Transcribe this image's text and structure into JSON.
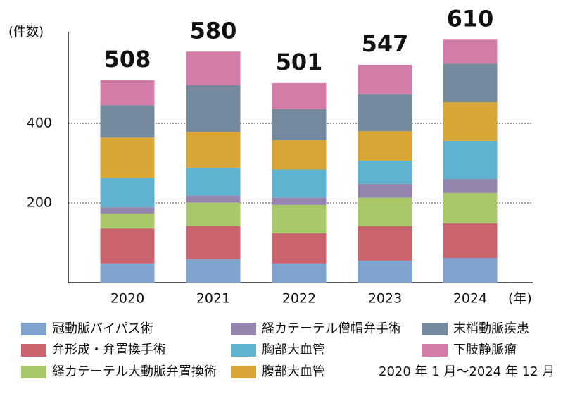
{
  "chart_data": {
    "type": "stacked_bar",
    "y_label": "(件数)",
    "x_unit": "(年)",
    "categories": [
      "2020",
      "2021",
      "2022",
      "2023",
      "2024"
    ],
    "series": [
      {
        "name": "冠動脈バイパス術",
        "color": "#7fa3cc",
        "values": [
          48,
          58,
          48,
          55,
          62
        ]
      },
      {
        "name": "弁形成・弁置換手術",
        "color": "#c9636e",
        "values": [
          88,
          85,
          76,
          87,
          87
        ]
      },
      {
        "name": "経カテーテル大動脈弁置換術",
        "color": "#a9c86a",
        "values": [
          37,
          58,
          71,
          71,
          76
        ]
      },
      {
        "name": "経カテーテル僧帽弁手術",
        "color": "#9484ae",
        "values": [
          16,
          18,
          18,
          35,
          35
        ]
      },
      {
        "name": "胸部大血管",
        "color": "#5fb3cf",
        "values": [
          74,
          69,
          71,
          58,
          96
        ]
      },
      {
        "name": "腹部大血管",
        "color": "#d7a636",
        "values": [
          101,
          90,
          74,
          74,
          97
        ]
      },
      {
        "name": "末梢動脈疾患",
        "color": "#768a9e",
        "values": [
          81,
          118,
          78,
          93,
          97
        ]
      },
      {
        "name": "下肢静脈瘤",
        "color": "#d47ca8",
        "values": [
          63,
          84,
          65,
          74,
          60
        ]
      }
    ],
    "totals": [
      508,
      580,
      501,
      547,
      610
    ],
    "note": "2020 年 1 月～2024 年 12 月",
    "ylim": [
      0,
      630
    ],
    "yticks": [
      200,
      400
    ],
    "grid": true
  }
}
